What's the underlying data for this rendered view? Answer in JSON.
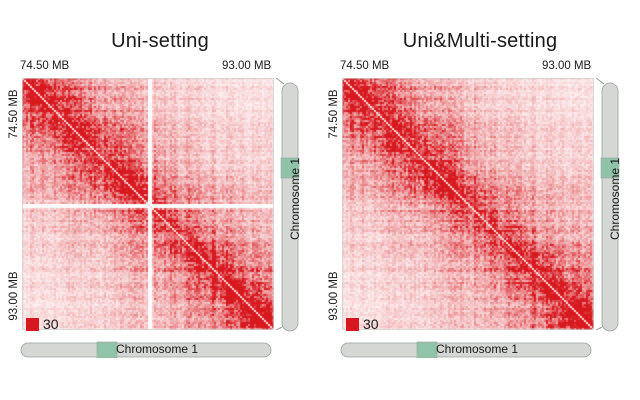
{
  "chart_data": [
    {
      "type": "heatmap",
      "title": "Uni-setting",
      "x_range_labels": [
        "74.50 MB",
        "93.00 MB"
      ],
      "y_range_labels": [
        "74.50 MB",
        "93.00 MB"
      ],
      "chromosome_label": "Chromosome 1",
      "legend_value": "30",
      "colormap": [
        "#ffffff",
        "#d7191f"
      ],
      "has_unmappable_gap": true,
      "gap_fraction": 0.5
    },
    {
      "type": "heatmap",
      "title": "Uni&Multi-setting",
      "x_range_labels": [
        "74.50 MB",
        "93.00 MB"
      ],
      "y_range_labels": [
        "74.50 MB",
        "93.00 MB"
      ],
      "chromosome_label": "Chromosome 1",
      "legend_value": "30",
      "colormap": [
        "#ffffff",
        "#d7191f"
      ],
      "has_unmappable_gap": false,
      "gap_fraction": 0.5
    }
  ],
  "colors": {
    "heat": "#d7191f",
    "chromosome_body": "#d4d7d3",
    "chromosome_highlight": "#8fc4a8",
    "outline": "#9aa39c"
  }
}
